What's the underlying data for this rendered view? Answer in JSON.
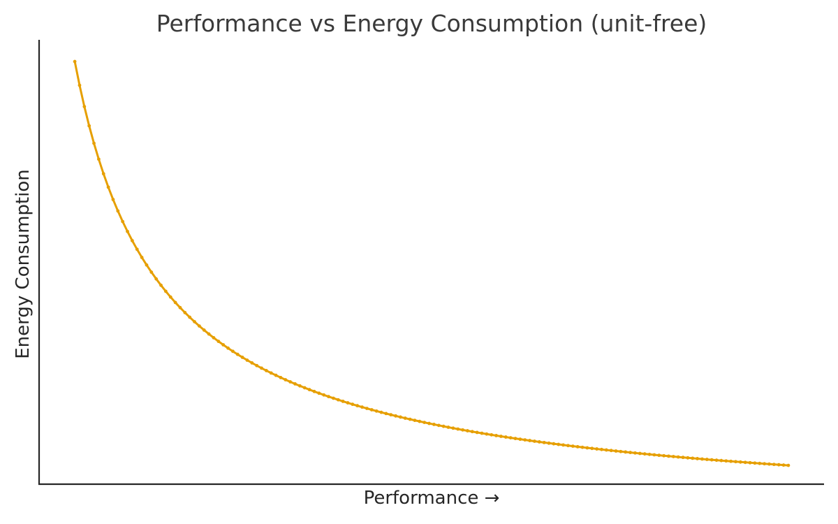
{
  "figure": {
    "background": "#ffffff",
    "text_color": "#262626",
    "title_color": "#3a3a3a",
    "spine_color": "#262626"
  },
  "chart_data": {
    "type": "line",
    "title": "Performance vs Energy Consumption (unit-free)",
    "xlabel": "Performance →",
    "ylabel": "Energy Consumption",
    "grid": false,
    "legend": "none",
    "tick_labels": "none (unit-free axes)",
    "xlim": [
      0.55,
      10.45
    ],
    "ylim": [
      0.0837,
      1.0454
    ],
    "series": [
      {
        "name": "energy-vs-performance",
        "color": "#E69F00",
        "line_width": 3,
        "marker": "circle",
        "marker_radius": 2.4,
        "generator": {
          "kind": "power-law",
          "description": "energy = performance^-0.9",
          "x_min": 1.0,
          "x_max": 10.0,
          "exponent": -0.9,
          "n_points": 150
        },
        "samples": [
          [
            1.0,
            1.0
          ],
          [
            1.25,
            0.818
          ],
          [
            1.5,
            0.694
          ],
          [
            1.75,
            0.604
          ],
          [
            2.0,
            0.536
          ],
          [
            2.5,
            0.438
          ],
          [
            3.0,
            0.372
          ],
          [
            3.5,
            0.324
          ],
          [
            4.0,
            0.287
          ],
          [
            4.5,
            0.258
          ],
          [
            5.0,
            0.235
          ],
          [
            5.5,
            0.216
          ],
          [
            6.0,
            0.199
          ],
          [
            6.5,
            0.186
          ],
          [
            7.0,
            0.174
          ],
          [
            7.5,
            0.163
          ],
          [
            8.0,
            0.154
          ],
          [
            8.5,
            0.146
          ],
          [
            9.0,
            0.138
          ],
          [
            9.5,
            0.132
          ],
          [
            10.0,
            0.126
          ]
        ]
      }
    ]
  }
}
